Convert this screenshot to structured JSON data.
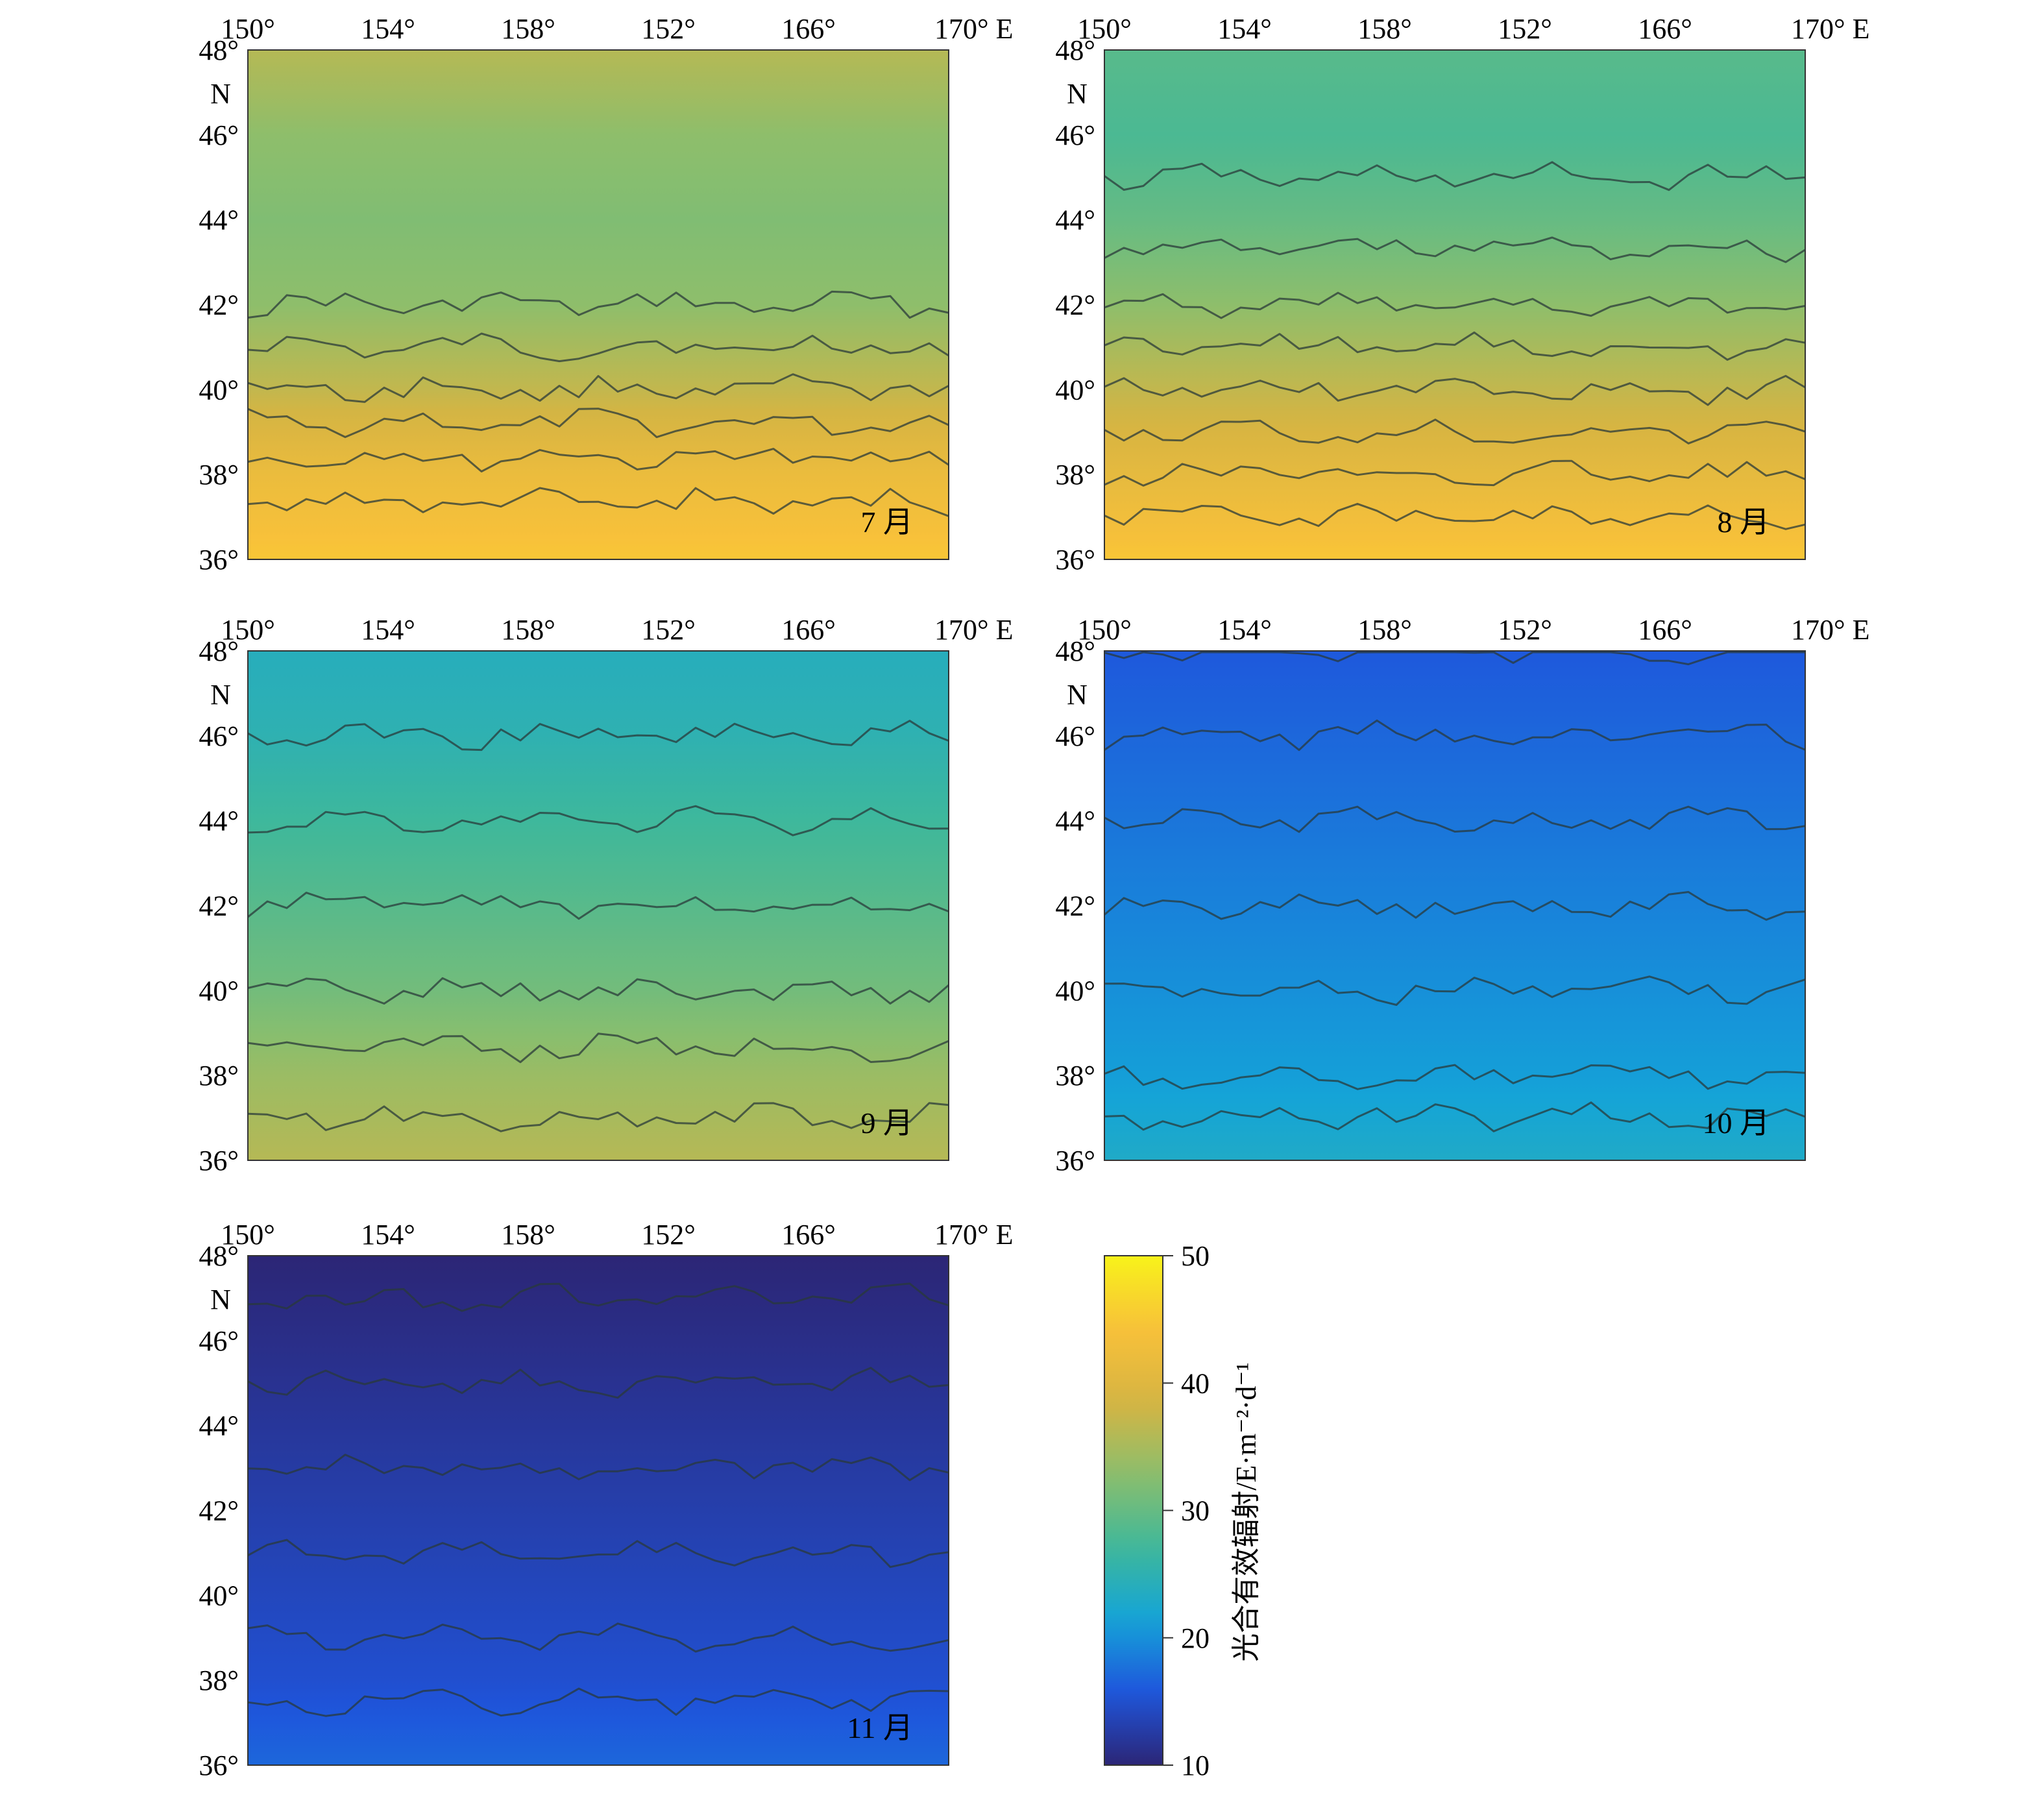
{
  "chart_data": [
    {
      "type": "heatmap",
      "month_label": "7 月",
      "x_ticks": [
        "150°",
        "154°",
        "158°",
        "152°",
        "166°",
        "170° E"
      ],
      "y_ticks": [
        "48°",
        "46°",
        "44°",
        "42°",
        "40°",
        "38°",
        "36°"
      ],
      "y_unit": "N",
      "xlim": [
        150,
        170
      ],
      "ylim": [
        36,
        48
      ],
      "latitude": [
        48,
        46,
        44,
        42,
        40,
        38,
        36
      ],
      "mean_values": [
        36,
        33,
        32,
        33,
        37,
        42,
        45
      ],
      "contour_levels": [
        29,
        31,
        33,
        35,
        37,
        39,
        41,
        43
      ]
    },
    {
      "type": "heatmap",
      "month_label": "8 月",
      "x_ticks": [
        "150°",
        "154°",
        "158°",
        "152°",
        "166°",
        "170° E"
      ],
      "y_ticks": [
        "48°",
        "46°",
        "44°",
        "42°",
        "40°",
        "38°",
        "36°"
      ],
      "y_unit": "N",
      "xlim": [
        150,
        170
      ],
      "ylim": [
        36,
        48
      ],
      "latitude": [
        48,
        46,
        44,
        42,
        40,
        38,
        36
      ],
      "mean_values": [
        29,
        28,
        30,
        33,
        37,
        41,
        45
      ],
      "contour_levels": [
        27,
        29,
        31,
        33,
        35,
        37,
        39,
        41,
        43
      ]
    },
    {
      "type": "heatmap",
      "month_label": "9 月",
      "x_ticks": [
        "150°",
        "154°",
        "158°",
        "152°",
        "166°",
        "170° E"
      ],
      "y_ticks": [
        "48°",
        "46°",
        "44°",
        "42°",
        "40°",
        "38°",
        "36°"
      ],
      "y_unit": "N",
      "xlim": [
        150,
        170
      ],
      "ylim": [
        36,
        48
      ],
      "latitude": [
        48,
        46,
        44,
        42,
        40,
        38,
        36
      ],
      "mean_values": [
        24,
        25,
        27,
        29,
        31,
        34,
        36
      ],
      "contour_levels": [
        25,
        27,
        29,
        31,
        33,
        35
      ]
    },
    {
      "type": "heatmap",
      "month_label": "10 月",
      "x_ticks": [
        "150°",
        "154°",
        "158°",
        "152°",
        "166°",
        "170° E"
      ],
      "y_ticks": [
        "48°",
        "46°",
        "44°",
        "42°",
        "40°",
        "38°",
        "36°"
      ],
      "y_unit": "N",
      "xlim": [
        150,
        170
      ],
      "ylim": [
        36,
        48
      ],
      "latitude": [
        48,
        46,
        44,
        42,
        40,
        38,
        36
      ],
      "mean_values": [
        16,
        17,
        18,
        19,
        20,
        21,
        23
      ],
      "contour_levels": [
        16,
        17,
        18,
        19,
        20,
        21,
        22
      ]
    },
    {
      "type": "heatmap",
      "month_label": "11 月",
      "x_ticks": [
        "150°",
        "154°",
        "158°",
        "152°",
        "166°",
        "170° E"
      ],
      "y_ticks": [
        "48°",
        "46°",
        "44°",
        "42°",
        "40°",
        "38°",
        "36°"
      ],
      "y_unit": "N",
      "xlim": [
        150,
        170
      ],
      "ylim": [
        36,
        48
      ],
      "latitude": [
        48,
        46,
        44,
        42,
        40,
        38,
        36
      ],
      "mean_values": [
        10,
        11,
        12,
        13,
        14,
        15,
        17
      ],
      "contour_levels": [
        10.5,
        11.5,
        12.5,
        13.5,
        14.5,
        15.5
      ]
    }
  ],
  "colorbar": {
    "label": "光合有效辐射/E·m⁻²·d⁻¹",
    "ticks": [
      50,
      40,
      30,
      20,
      10
    ],
    "range": [
      10,
      50
    ],
    "colormap": [
      "#2c2676",
      "#1f55dc",
      "#14a4d8",
      "#3fb89a",
      "#8cbe6c",
      "#d7b442",
      "#f8c13a",
      "#f8f31a"
    ]
  }
}
